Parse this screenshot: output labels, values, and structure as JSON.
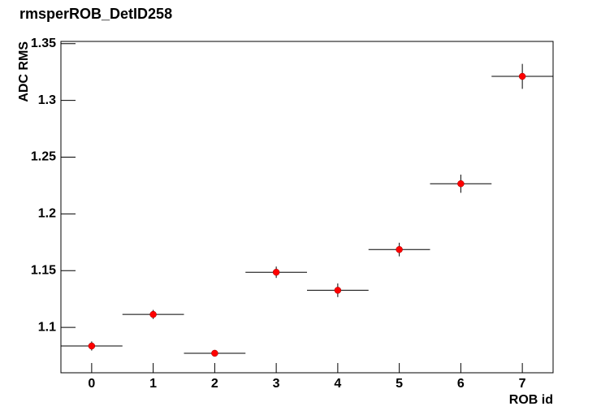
{
  "chart_data": {
    "type": "scatter",
    "title": "rmsperROB_DetID258",
    "x_label": "ROB id",
    "y_label": "ADC RMS",
    "x": [
      0,
      1,
      2,
      3,
      4,
      5,
      6,
      7
    ],
    "values": [
      1.0836,
      1.1114,
      1.0772,
      1.1486,
      1.1327,
      1.1686,
      1.2266,
      1.3212
    ],
    "errors": [
      0.004,
      0.004,
      0.002,
      0.005,
      0.006,
      0.006,
      0.008,
      0.011
    ],
    "xerrors": [
      0.5,
      0.5,
      0.5,
      0.5,
      0.5,
      0.5,
      0.5,
      0.5
    ],
    "color": "#ff0000",
    "xlim": [
      -0.5,
      7.5
    ],
    "xticks": [
      0,
      1,
      2,
      3,
      4,
      5,
      6,
      7
    ],
    "ylim": [
      1.06,
      1.352
    ],
    "yticks": [
      1.1,
      1.15,
      1.2,
      1.25,
      1.3,
      1.35
    ],
    "grid": false
  }
}
